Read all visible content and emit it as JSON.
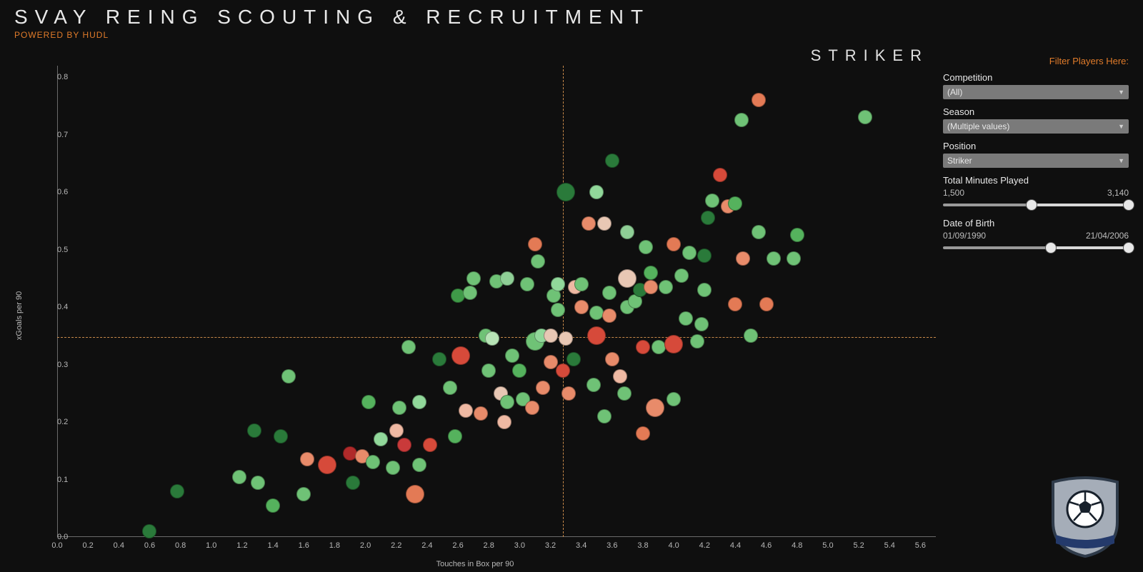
{
  "header": {
    "title": "SVAY REING SCOUTING & RECRUITMENT",
    "subtitle": "POWERED BY HUDL",
    "category": "STRIKER"
  },
  "filters": {
    "heading": "Filter Players Here:",
    "competition": {
      "label": "Competition",
      "value": "(All)"
    },
    "season": {
      "label": "Season",
      "value": "(Multiple values)"
    },
    "position": {
      "label": "Position",
      "value": "Striker"
    },
    "minutes": {
      "label": "Total Minutes Played",
      "min_label": "1,500",
      "max_label": "3,140",
      "domain_min": 0,
      "domain_max": 3140,
      "value_min": 1500,
      "value_max": 3140
    },
    "dob": {
      "label": "Date of Birth",
      "min_label": "01/09/1990",
      "max_label": "21/04/2006",
      "domain_min": 0,
      "domain_max": 100,
      "value_min": 58,
      "value_max": 100
    }
  },
  "chart": {
    "type": "scatter",
    "background": "#0f0f0f",
    "x_axis": {
      "label": "Touches in Box per 90",
      "min": 0.0,
      "max": 5.7,
      "tick_step": 0.2,
      "label_fontsize": 11,
      "tick_fontsize": 11,
      "tick_color": "#b8b8b8",
      "axis_color": "#6a6a6a"
    },
    "y_axis": {
      "label": "xGoals per 90",
      "min": 0.0,
      "max": 0.82,
      "tick_step": 0.1,
      "label_fontsize": 11,
      "tick_fontsize": 11,
      "tick_color": "#b8b8b8",
      "axis_color": "#6a6a6a"
    },
    "reference_lines": {
      "x": 3.28,
      "y": 0.348,
      "color": "#c98a4a",
      "dash": "2,3"
    },
    "marker_stroke": "rgba(0,0,0,0.35)",
    "points": [
      {
        "x": 0.6,
        "y": 0.01,
        "c": "#2a7a3a",
        "r": 10
      },
      {
        "x": 0.78,
        "y": 0.08,
        "c": "#2a7a3a",
        "r": 10
      },
      {
        "x": 1.18,
        "y": 0.105,
        "c": "#6fc276",
        "r": 10
      },
      {
        "x": 1.3,
        "y": 0.095,
        "c": "#6fc276",
        "r": 10
      },
      {
        "x": 1.28,
        "y": 0.185,
        "c": "#2a7a3a",
        "r": 10
      },
      {
        "x": 1.4,
        "y": 0.055,
        "c": "#55b25d",
        "r": 10
      },
      {
        "x": 1.45,
        "y": 0.175,
        "c": "#2a7a3a",
        "r": 10
      },
      {
        "x": 1.5,
        "y": 0.28,
        "c": "#6fc276",
        "r": 10
      },
      {
        "x": 1.6,
        "y": 0.075,
        "c": "#6fc276",
        "r": 10
      },
      {
        "x": 1.62,
        "y": 0.135,
        "c": "#e88b6a",
        "r": 10
      },
      {
        "x": 1.75,
        "y": 0.125,
        "c": "#d64a3a",
        "r": 13
      },
      {
        "x": 1.9,
        "y": 0.145,
        "c": "#b02a2a",
        "r": 10
      },
      {
        "x": 1.92,
        "y": 0.095,
        "c": "#2a7a3a",
        "r": 10
      },
      {
        "x": 1.98,
        "y": 0.14,
        "c": "#e88b6a",
        "r": 10
      },
      {
        "x": 2.05,
        "y": 0.13,
        "c": "#6fc276",
        "r": 10
      },
      {
        "x": 2.02,
        "y": 0.235,
        "c": "#55b25d",
        "r": 10
      },
      {
        "x": 2.1,
        "y": 0.17,
        "c": "#91d89a",
        "r": 10
      },
      {
        "x": 2.18,
        "y": 0.12,
        "c": "#6fc276",
        "r": 10
      },
      {
        "x": 2.2,
        "y": 0.185,
        "c": "#efb9a3",
        "r": 10
      },
      {
        "x": 2.22,
        "y": 0.225,
        "c": "#6fc276",
        "r": 10
      },
      {
        "x": 2.25,
        "y": 0.16,
        "c": "#c93a3a",
        "r": 10
      },
      {
        "x": 2.28,
        "y": 0.33,
        "c": "#6fc276",
        "r": 10
      },
      {
        "x": 2.32,
        "y": 0.075,
        "c": "#e37a55",
        "r": 13
      },
      {
        "x": 2.35,
        "y": 0.125,
        "c": "#6fc276",
        "r": 10
      },
      {
        "x": 2.35,
        "y": 0.235,
        "c": "#91d89a",
        "r": 10
      },
      {
        "x": 2.42,
        "y": 0.16,
        "c": "#d64a3a",
        "r": 10
      },
      {
        "x": 2.48,
        "y": 0.31,
        "c": "#2a7a3a",
        "r": 10
      },
      {
        "x": 2.55,
        "y": 0.26,
        "c": "#6fc276",
        "r": 10
      },
      {
        "x": 2.58,
        "y": 0.175,
        "c": "#55b25d",
        "r": 10
      },
      {
        "x": 2.6,
        "y": 0.42,
        "c": "#3f9a48",
        "r": 10
      },
      {
        "x": 2.62,
        "y": 0.315,
        "c": "#d64a3a",
        "r": 13
      },
      {
        "x": 2.65,
        "y": 0.22,
        "c": "#efb9a3",
        "r": 10
      },
      {
        "x": 2.68,
        "y": 0.425,
        "c": "#6fc276",
        "r": 10
      },
      {
        "x": 2.7,
        "y": 0.45,
        "c": "#6fc276",
        "r": 10
      },
      {
        "x": 2.75,
        "y": 0.215,
        "c": "#e88b6a",
        "r": 10
      },
      {
        "x": 2.78,
        "y": 0.35,
        "c": "#6fc276",
        "r": 10
      },
      {
        "x": 2.8,
        "y": 0.29,
        "c": "#6fc276",
        "r": 10
      },
      {
        "x": 2.82,
        "y": 0.345,
        "c": "#b7e4b6",
        "r": 10
      },
      {
        "x": 2.85,
        "y": 0.445,
        "c": "#6fc276",
        "r": 10
      },
      {
        "x": 2.88,
        "y": 0.25,
        "c": "#e8c7b4",
        "r": 10
      },
      {
        "x": 2.9,
        "y": 0.2,
        "c": "#efb9a3",
        "r": 10
      },
      {
        "x": 2.92,
        "y": 0.235,
        "c": "#6fc276",
        "r": 10
      },
      {
        "x": 2.92,
        "y": 0.45,
        "c": "#8fcf96",
        "r": 10
      },
      {
        "x": 2.95,
        "y": 0.315,
        "c": "#6fc276",
        "r": 10
      },
      {
        "x": 3.0,
        "y": 0.29,
        "c": "#55b25d",
        "r": 10
      },
      {
        "x": 3.02,
        "y": 0.24,
        "c": "#6fc276",
        "r": 10
      },
      {
        "x": 3.05,
        "y": 0.44,
        "c": "#6fc276",
        "r": 10
      },
      {
        "x": 3.08,
        "y": 0.225,
        "c": "#e88b6a",
        "r": 10
      },
      {
        "x": 3.1,
        "y": 0.34,
        "c": "#6fc276",
        "r": 13
      },
      {
        "x": 3.1,
        "y": 0.51,
        "c": "#e37a55",
        "r": 10
      },
      {
        "x": 3.12,
        "y": 0.48,
        "c": "#6fc276",
        "r": 10
      },
      {
        "x": 3.14,
        "y": 0.35,
        "c": "#91d89a",
        "r": 10
      },
      {
        "x": 3.15,
        "y": 0.26,
        "c": "#e88b6a",
        "r": 10
      },
      {
        "x": 3.2,
        "y": 0.305,
        "c": "#e88b6a",
        "r": 10
      },
      {
        "x": 3.2,
        "y": 0.35,
        "c": "#e8c7b4",
        "r": 10
      },
      {
        "x": 3.22,
        "y": 0.42,
        "c": "#6fc276",
        "r": 10
      },
      {
        "x": 3.25,
        "y": 0.44,
        "c": "#91d89a",
        "r": 10
      },
      {
        "x": 3.25,
        "y": 0.395,
        "c": "#6fc276",
        "r": 10
      },
      {
        "x": 3.28,
        "y": 0.29,
        "c": "#d64a3a",
        "r": 10
      },
      {
        "x": 3.3,
        "y": 0.345,
        "c": "#e8c7b4",
        "r": 10
      },
      {
        "x": 3.3,
        "y": 0.6,
        "c": "#2a7a3a",
        "r": 13
      },
      {
        "x": 3.32,
        "y": 0.25,
        "c": "#e88b6a",
        "r": 10
      },
      {
        "x": 3.35,
        "y": 0.31,
        "c": "#2a7a3a",
        "r": 10
      },
      {
        "x": 3.36,
        "y": 0.435,
        "c": "#efb9a3",
        "r": 10
      },
      {
        "x": 3.4,
        "y": 0.4,
        "c": "#e88b6a",
        "r": 10
      },
      {
        "x": 3.4,
        "y": 0.44,
        "c": "#6fc276",
        "r": 10
      },
      {
        "x": 3.45,
        "y": 0.545,
        "c": "#e88b6a",
        "r": 10
      },
      {
        "x": 3.48,
        "y": 0.265,
        "c": "#6fc276",
        "r": 10
      },
      {
        "x": 3.5,
        "y": 0.39,
        "c": "#6fc276",
        "r": 10
      },
      {
        "x": 3.5,
        "y": 0.35,
        "c": "#d64a3a",
        "r": 13
      },
      {
        "x": 3.5,
        "y": 0.6,
        "c": "#91d89a",
        "r": 10
      },
      {
        "x": 3.55,
        "y": 0.21,
        "c": "#6fc276",
        "r": 10
      },
      {
        "x": 3.55,
        "y": 0.545,
        "c": "#e8c7b4",
        "r": 10
      },
      {
        "x": 3.58,
        "y": 0.385,
        "c": "#e88b6a",
        "r": 10
      },
      {
        "x": 3.58,
        "y": 0.425,
        "c": "#6fc276",
        "r": 10
      },
      {
        "x": 3.6,
        "y": 0.31,
        "c": "#e88b6a",
        "r": 10
      },
      {
        "x": 3.6,
        "y": 0.655,
        "c": "#2a7a3a",
        "r": 10
      },
      {
        "x": 3.65,
        "y": 0.28,
        "c": "#efb9a3",
        "r": 10
      },
      {
        "x": 3.68,
        "y": 0.25,
        "c": "#6fc276",
        "r": 10
      },
      {
        "x": 3.7,
        "y": 0.4,
        "c": "#6fc276",
        "r": 10
      },
      {
        "x": 3.7,
        "y": 0.45,
        "c": "#e8c7b4",
        "r": 13
      },
      {
        "x": 3.7,
        "y": 0.53,
        "c": "#8fcf96",
        "r": 10
      },
      {
        "x": 3.75,
        "y": 0.41,
        "c": "#6fc276",
        "r": 10
      },
      {
        "x": 3.78,
        "y": 0.43,
        "c": "#2a7a3a",
        "r": 10
      },
      {
        "x": 3.8,
        "y": 0.18,
        "c": "#e37a55",
        "r": 10
      },
      {
        "x": 3.8,
        "y": 0.33,
        "c": "#d64a3a",
        "r": 10
      },
      {
        "x": 3.82,
        "y": 0.505,
        "c": "#6fc276",
        "r": 10
      },
      {
        "x": 3.85,
        "y": 0.435,
        "c": "#e88b6a",
        "r": 10
      },
      {
        "x": 3.85,
        "y": 0.46,
        "c": "#55b25d",
        "r": 10
      },
      {
        "x": 3.88,
        "y": 0.225,
        "c": "#e88b6a",
        "r": 13
      },
      {
        "x": 3.9,
        "y": 0.33,
        "c": "#6fc276",
        "r": 10
      },
      {
        "x": 3.95,
        "y": 0.435,
        "c": "#6fc276",
        "r": 10
      },
      {
        "x": 4.0,
        "y": 0.335,
        "c": "#d64a3a",
        "r": 13
      },
      {
        "x": 4.0,
        "y": 0.24,
        "c": "#6fc276",
        "r": 10
      },
      {
        "x": 4.0,
        "y": 0.51,
        "c": "#e37a55",
        "r": 10
      },
      {
        "x": 4.05,
        "y": 0.455,
        "c": "#6fc276",
        "r": 10
      },
      {
        "x": 4.08,
        "y": 0.38,
        "c": "#6fc276",
        "r": 10
      },
      {
        "x": 4.1,
        "y": 0.495,
        "c": "#6fc276",
        "r": 10
      },
      {
        "x": 4.15,
        "y": 0.34,
        "c": "#6fc276",
        "r": 10
      },
      {
        "x": 4.18,
        "y": 0.37,
        "c": "#6fc276",
        "r": 10
      },
      {
        "x": 4.2,
        "y": 0.43,
        "c": "#6fc276",
        "r": 10
      },
      {
        "x": 4.2,
        "y": 0.49,
        "c": "#2a7a3a",
        "r": 10
      },
      {
        "x": 4.22,
        "y": 0.555,
        "c": "#2a7a3a",
        "r": 10
      },
      {
        "x": 4.25,
        "y": 0.585,
        "c": "#6fc276",
        "r": 10
      },
      {
        "x": 4.3,
        "y": 0.63,
        "c": "#d64a3a",
        "r": 10
      },
      {
        "x": 4.35,
        "y": 0.575,
        "c": "#e88b6a",
        "r": 10
      },
      {
        "x": 4.4,
        "y": 0.405,
        "c": "#e37a55",
        "r": 10
      },
      {
        "x": 4.4,
        "y": 0.58,
        "c": "#55b25d",
        "r": 10
      },
      {
        "x": 4.44,
        "y": 0.725,
        "c": "#6fc276",
        "r": 10
      },
      {
        "x": 4.45,
        "y": 0.485,
        "c": "#e88b6a",
        "r": 10
      },
      {
        "x": 4.5,
        "y": 0.35,
        "c": "#6fc276",
        "r": 10
      },
      {
        "x": 4.55,
        "y": 0.53,
        "c": "#6fc276",
        "r": 10
      },
      {
        "x": 4.55,
        "y": 0.76,
        "c": "#e37a55",
        "r": 10
      },
      {
        "x": 4.6,
        "y": 0.405,
        "c": "#e37a55",
        "r": 10
      },
      {
        "x": 4.65,
        "y": 0.485,
        "c": "#6fc276",
        "r": 10
      },
      {
        "x": 4.78,
        "y": 0.485,
        "c": "#6fc276",
        "r": 10
      },
      {
        "x": 4.8,
        "y": 0.525,
        "c": "#55b25d",
        "r": 10
      },
      {
        "x": 5.24,
        "y": 0.73,
        "c": "#6fc276",
        "r": 10
      }
    ]
  },
  "crest": {
    "shield_fill": "#a5adb8",
    "shield_stroke": "#2f3b4a",
    "ball_fill": "#ffffff",
    "ball_stroke": "#17202b",
    "ribbon_fill": "#243a6b"
  }
}
